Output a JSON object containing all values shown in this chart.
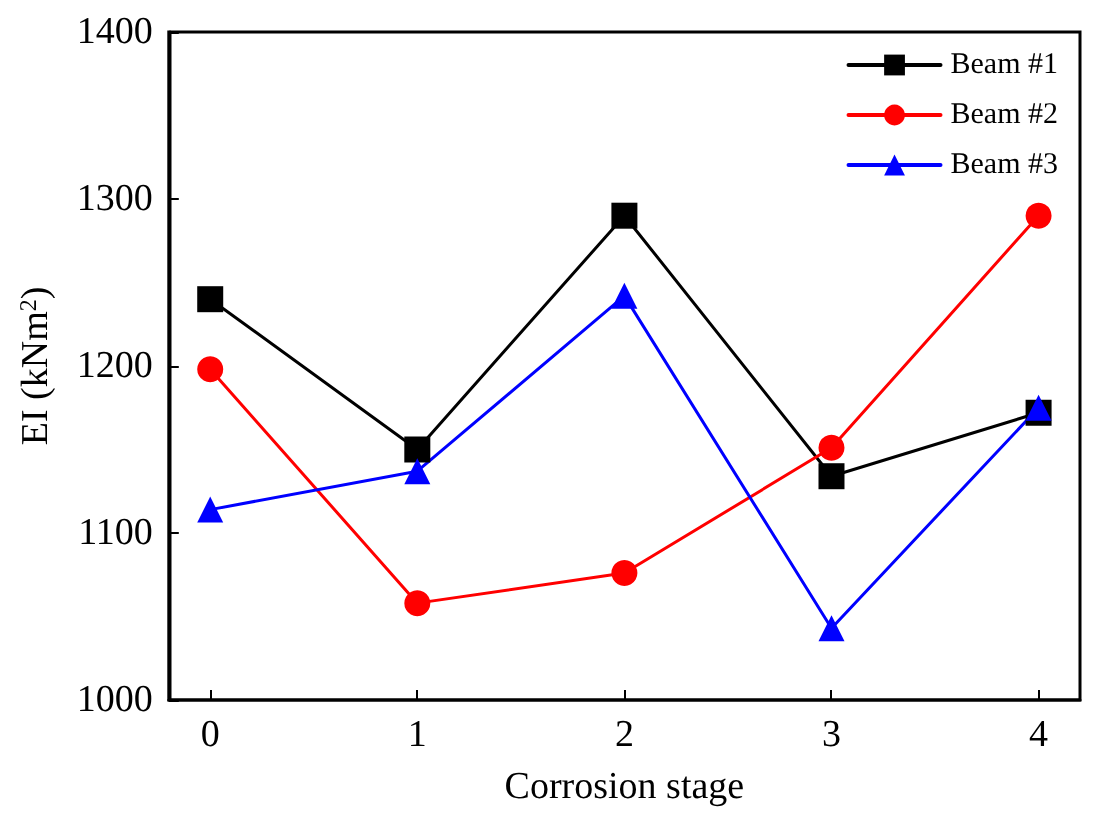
{
  "chart_data": {
    "type": "line",
    "xlabel": "Corrosion stage",
    "ylabel": "EI (kNm$^{2}$)",
    "x": [
      0,
      1,
      2,
      3,
      4
    ],
    "xlim": [
      -0.2,
      4.2
    ],
    "xticks": [
      0,
      1,
      2,
      3,
      4
    ],
    "ylim": [
      1000,
      1400
    ],
    "yticks": [
      1000,
      1100,
      1200,
      1300,
      1400
    ],
    "series": [
      {
        "name": "Beam #1",
        "color": "#000000",
        "marker": "square",
        "values": [
          1240,
          1150,
          1290,
          1134,
          1172
        ]
      },
      {
        "name": "Beam #2",
        "color": "#ff0000",
        "marker": "circle",
        "values": [
          1198,
          1058,
          1076,
          1151,
          1290
        ]
      },
      {
        "name": "Beam #3",
        "color": "#0000ff",
        "marker": "triangle",
        "values": [
          1114,
          1137,
          1242,
          1043,
          1175
        ]
      }
    ],
    "legend": "top right",
    "grid": false,
    "line_style": "solid"
  }
}
